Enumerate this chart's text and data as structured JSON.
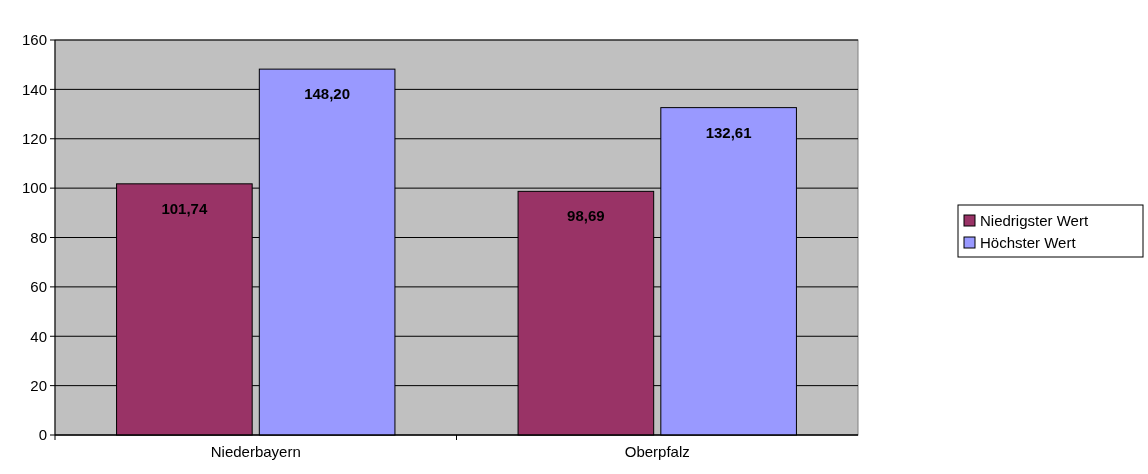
{
  "chart_data": {
    "type": "bar",
    "categories": [
      "Niederbayern",
      "Oberpfalz"
    ],
    "series": [
      {
        "name": "Niedrigster Wert",
        "color": "#993366",
        "values": [
          101.74,
          98.69
        ],
        "value_labels": [
          "101,74",
          "98,69"
        ]
      },
      {
        "name": "Höchster Wert",
        "color": "#9999ff",
        "values": [
          148.2,
          132.61
        ],
        "value_labels": [
          "148,20",
          "132,61"
        ]
      }
    ],
    "ylim": [
      0,
      160
    ],
    "yticks": [
      0,
      20,
      40,
      60,
      80,
      100,
      120,
      140,
      160
    ],
    "grid": "y",
    "legend": "right"
  }
}
